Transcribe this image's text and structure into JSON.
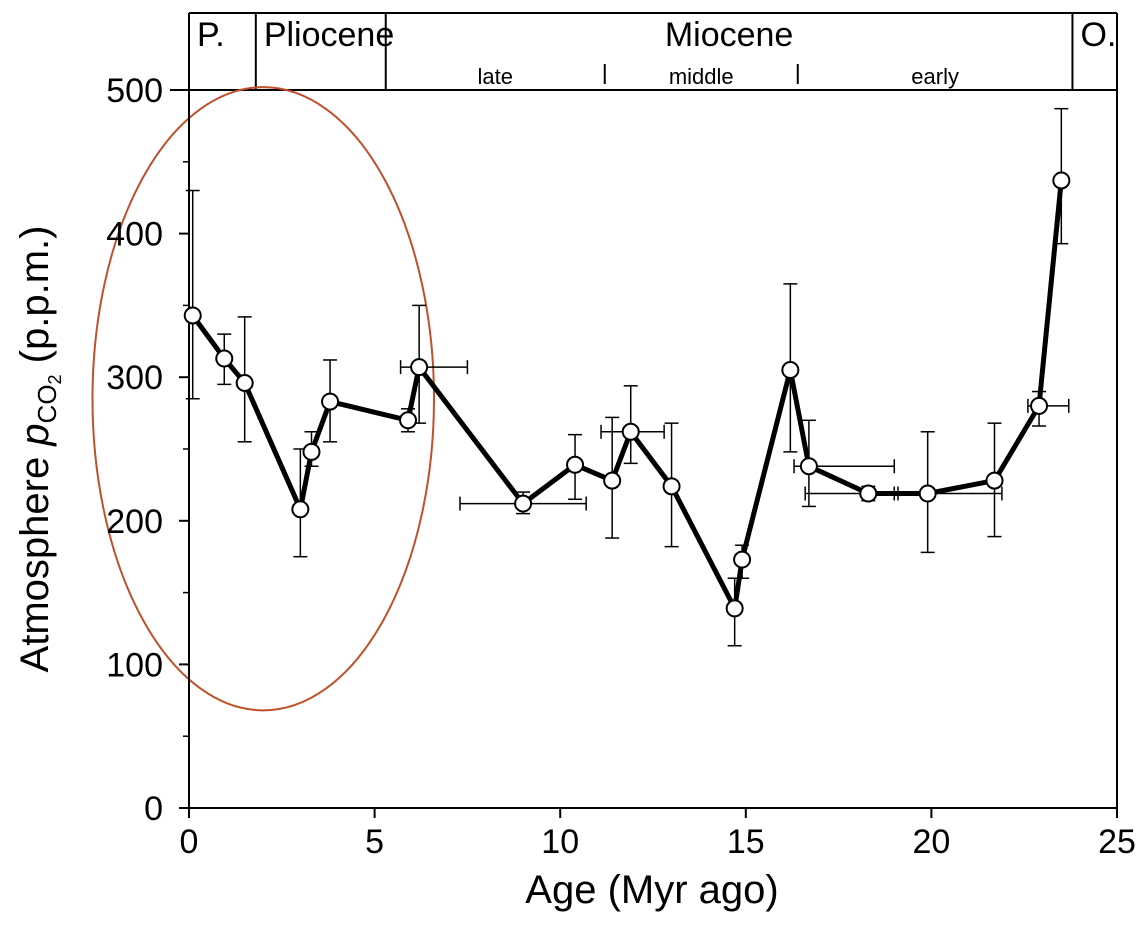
{
  "chart_data": {
    "type": "line",
    "xlabel": "Age (Myr ago)",
    "ylabel_main": "Atmosphere ",
    "ylabel_p": "p",
    "ylabel_sub": "CO",
    "ylabel_subsub": "2",
    "ylabel_unit": " (p.p.m.)",
    "xlim": [
      0,
      25
    ],
    "ylim": [
      0,
      500
    ],
    "x_ticks": [
      0,
      5,
      10,
      15,
      20,
      25
    ],
    "y_ticks": [
      0,
      100,
      200,
      300,
      400,
      500
    ],
    "grid": false,
    "legend": "none",
    "colors": {
      "line": "#000000",
      "marker_fill": "#ffffff",
      "annotation": "#c0502a"
    },
    "epochs": [
      {
        "label": "P.",
        "start": 0,
        "end": 1.8
      },
      {
        "label": "Pliocene",
        "start": 1.8,
        "end": 5.3
      },
      {
        "label": "Miocene",
        "start": 5.3,
        "end": 23.8
      },
      {
        "label": "O.",
        "start": 23.8,
        "end": 25
      }
    ],
    "subdivisions": [
      {
        "label": "late",
        "start": 5.3,
        "end": 11.2
      },
      {
        "label": "middle",
        "start": 11.2,
        "end": 16.4
      },
      {
        "label": "early",
        "start": 16.4,
        "end": 23.8
      }
    ],
    "annotation": {
      "shape": "ellipse",
      "cx": 2.0,
      "cy": 285,
      "rx": 4.6,
      "ry": 217
    },
    "series": [
      {
        "points": [
          {
            "x": 0.1,
            "y": 343,
            "ylo": 285,
            "yhi": 430
          },
          {
            "x": 0.95,
            "y": 313,
            "ylo": 295,
            "yhi": 330
          },
          {
            "x": 1.5,
            "y": 296,
            "ylo": 255,
            "yhi": 342
          },
          {
            "x": 3.0,
            "y": 208,
            "ylo": 175,
            "yhi": 250
          },
          {
            "x": 3.3,
            "y": 248,
            "ylo": 238,
            "yhi": 262
          },
          {
            "x": 3.8,
            "y": 283,
            "ylo": 255,
            "yhi": 312
          },
          {
            "x": 5.9,
            "y": 270,
            "ylo": 262,
            "yhi": 278
          },
          {
            "x": 6.2,
            "y": 307,
            "ylo": 268,
            "yhi": 350,
            "xlo": 5.7,
            "xhi": 7.5
          },
          {
            "x": 9.0,
            "y": 212,
            "ylo": 205,
            "yhi": 220,
            "xlo": 7.3,
            "xhi": 10.7
          },
          {
            "x": 10.4,
            "y": 239,
            "ylo": 215,
            "yhi": 260
          },
          {
            "x": 11.4,
            "y": 228,
            "ylo": 188,
            "yhi": 272
          },
          {
            "x": 11.9,
            "y": 262,
            "ylo": 240,
            "yhi": 294,
            "xlo": 11.1,
            "xhi": 12.8
          },
          {
            "x": 13.0,
            "y": 224,
            "ylo": 182,
            "yhi": 268
          },
          {
            "x": 14.7,
            "y": 139,
            "ylo": 113,
            "yhi": 160
          },
          {
            "x": 14.9,
            "y": 173,
            "ylo": 160,
            "yhi": 183
          },
          {
            "x": 16.2,
            "y": 305,
            "ylo": 248,
            "yhi": 365
          },
          {
            "x": 16.7,
            "y": 238,
            "ylo": 210,
            "yhi": 270,
            "xlo": 16.3,
            "xhi": 19.0
          },
          {
            "x": 18.3,
            "y": 219,
            "ylo": 214,
            "yhi": 224,
            "xlo": 16.6,
            "xhi": 19.1
          },
          {
            "x": 19.9,
            "y": 219,
            "ylo": 178,
            "yhi": 262,
            "xlo": 19.0,
            "xhi": 21.9
          },
          {
            "x": 21.7,
            "y": 228,
            "ylo": 189,
            "yhi": 268
          },
          {
            "x": 22.9,
            "y": 280,
            "ylo": 266,
            "yhi": 290,
            "xlo": 22.6,
            "xhi": 23.7
          },
          {
            "x": 23.5,
            "y": 437,
            "ylo": 393,
            "yhi": 487
          }
        ]
      }
    ]
  }
}
